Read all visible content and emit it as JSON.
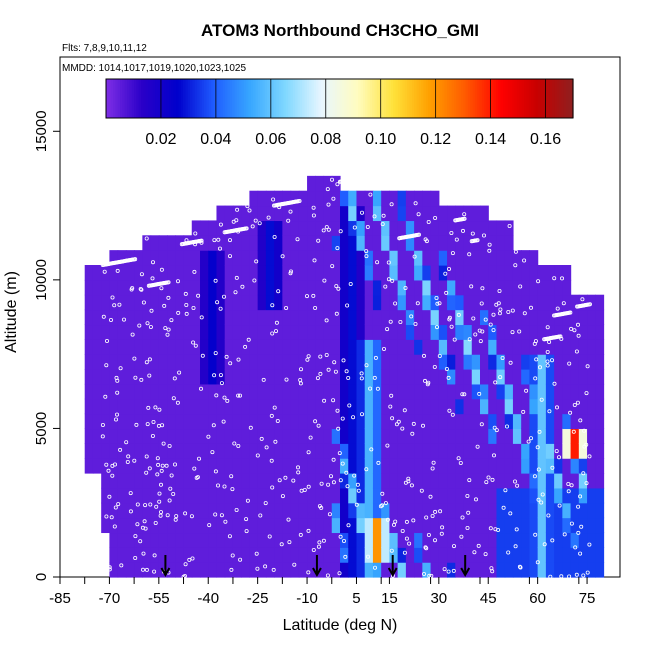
{
  "chart_data": {
    "type": "heatmap",
    "title": "ATOM3 Northbound CH3CHO_GMI",
    "subtitle_flights": "Flts: 7,8,9,10,11,12",
    "subtitle_dates": "MMDD: 1014,1017,1019,1020,1023,1025",
    "xlabel": "Latitude (deg N)",
    "ylabel": "Altitude (m)",
    "xlim": [
      -85,
      85
    ],
    "ylim": [
      0,
      17500
    ],
    "x_ticks": [
      "-85",
      "-70",
      "-55",
      "-40",
      "-25",
      "-10",
      "5",
      "15",
      "30",
      "45",
      "60",
      "75"
    ],
    "y_ticks": [
      "0",
      "5000",
      "10000",
      "15000"
    ],
    "colorbar": {
      "range": [
        0.0,
        0.17
      ],
      "ticks": [
        "0.02",
        "0.04",
        "0.06",
        "0.08",
        "0.10",
        "0.12",
        "0.14",
        "0.16"
      ],
      "colors": [
        "#7f2fe6",
        "#2a00c8",
        "#0000cc",
        "#1f5cff",
        "#37a6ff",
        "#80d8ff",
        "#e8f6ff",
        "#fffcc0",
        "#ffe23a",
        "#ffa000",
        "#ff5a00",
        "#ff0000",
        "#c80000",
        "#8f1f1f"
      ]
    },
    "field_description": {
      "background_value": 0.005,
      "bands": [
        {
          "lat": -40,
          "alt_min": 6500,
          "alt_max": 11000,
          "value": 0.025
        },
        {
          "lat": -22,
          "alt_min": 9000,
          "alt_max": 12000,
          "value": 0.03
        },
        {
          "lat": 2,
          "alt_min": 0,
          "alt_max": 12500,
          "value": 0.03
        },
        {
          "lat": 8,
          "alt_min": 0,
          "alt_max": 8000,
          "value": 0.06
        },
        {
          "lat": 10,
          "alt_min": 300,
          "alt_max": 2000,
          "value": 0.12
        },
        {
          "lat": 60,
          "alt_min": 0,
          "alt_max": 7500,
          "value": 0.06
        },
        {
          "lat": 70,
          "alt_min": 4200,
          "alt_max": 5200,
          "value": 0.14
        }
      ]
    },
    "arrows_at_lat": [
      -53,
      -7,
      16,
      38
    ],
    "flight_track_color": "#ffffff"
  }
}
